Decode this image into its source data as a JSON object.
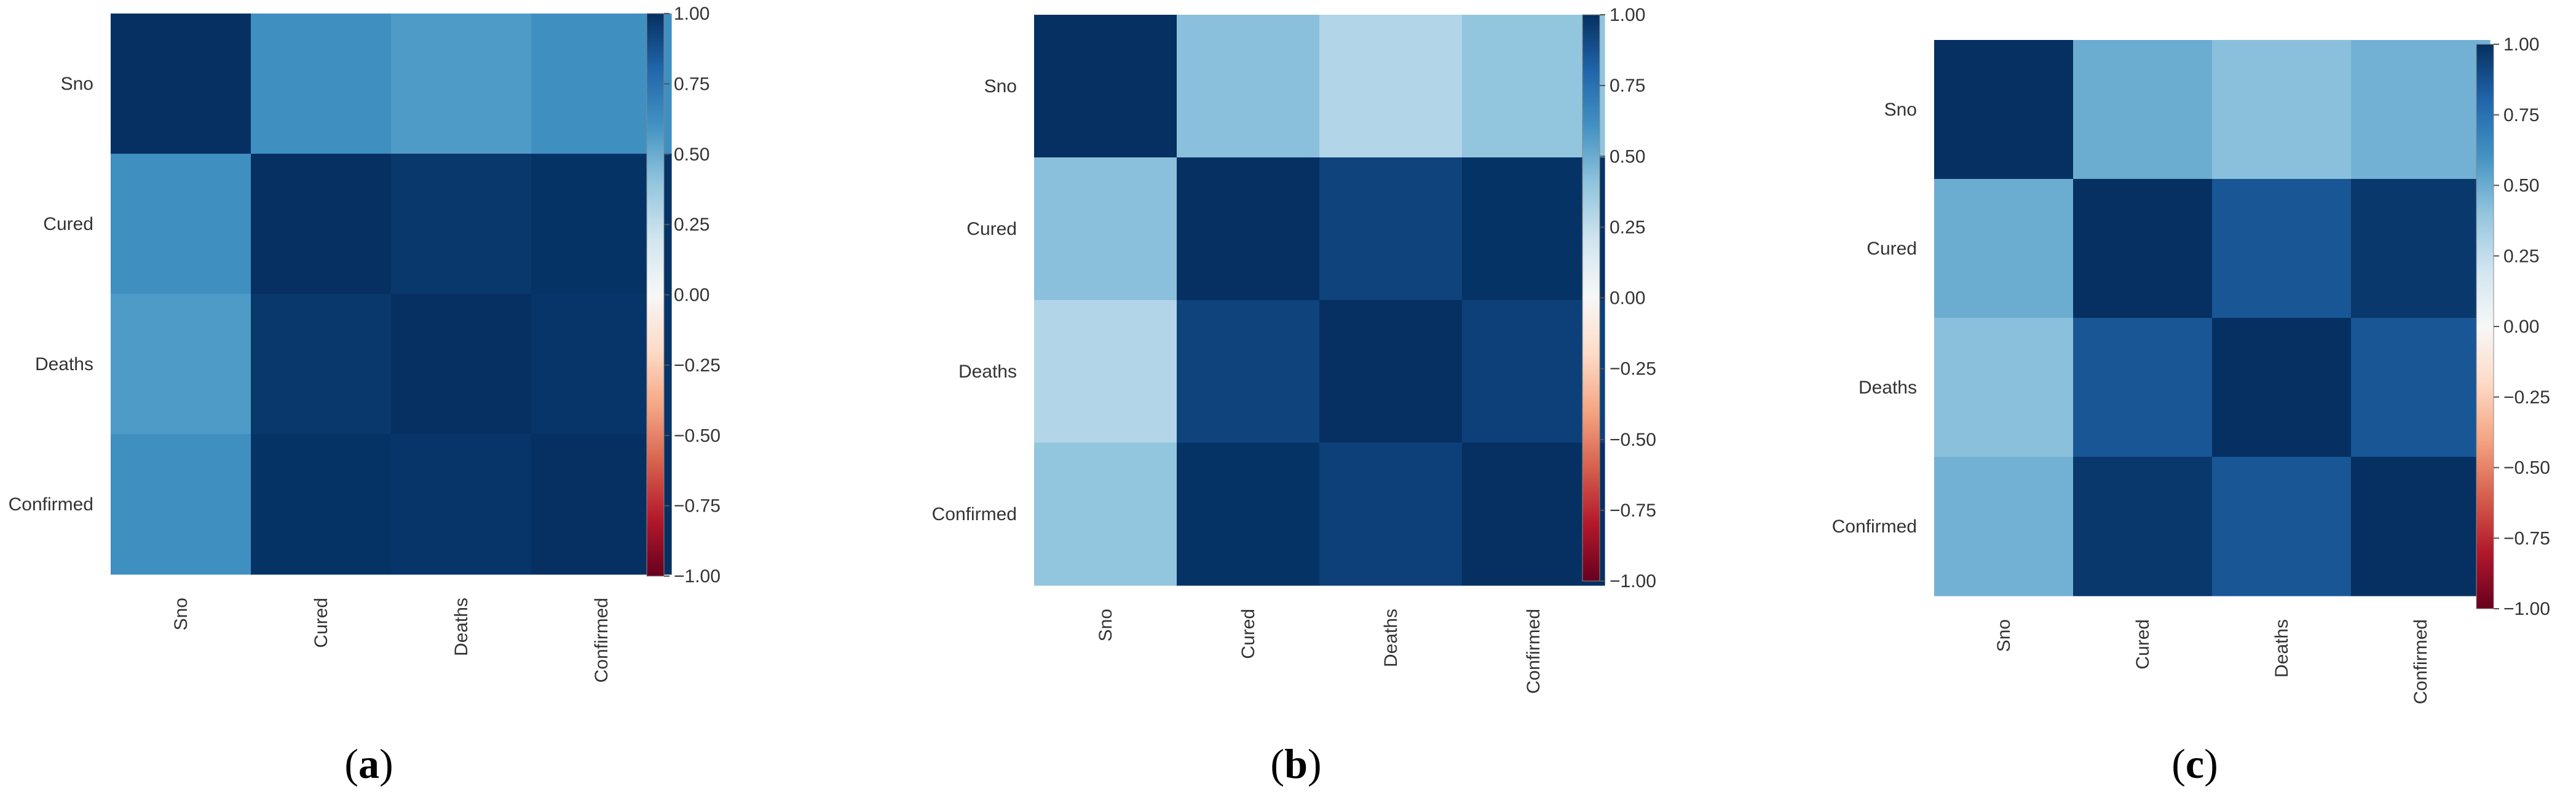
{
  "chart_data": [
    {
      "type": "heatmap",
      "panel_label": "a",
      "x_labels": [
        "Sno",
        "Cured",
        "Deaths",
        "Confirmed"
      ],
      "y_labels": [
        "Sno",
        "Cured",
        "Deaths",
        "Confirmed"
      ],
      "matrix": [
        [
          1.0,
          0.62,
          0.57,
          0.62
        ],
        [
          0.62,
          1.0,
          0.97,
          0.99
        ],
        [
          0.57,
          0.97,
          1.0,
          0.98
        ],
        [
          0.62,
          0.99,
          0.98,
          1.0
        ]
      ],
      "colorbar": {
        "range": [
          -1,
          1
        ],
        "ticks": [
          "1.00",
          "0.75",
          "0.50",
          "0.25",
          "0.00",
          "−0.25",
          "−0.50",
          "−0.75",
          "−1.00"
        ]
      },
      "colormap": "RdBu"
    },
    {
      "type": "heatmap",
      "panel_label": "b",
      "x_labels": [
        "Sno",
        "Cured",
        "Deaths",
        "Confirmed"
      ],
      "y_labels": [
        "Sno",
        "Cured",
        "Deaths",
        "Confirmed"
      ],
      "matrix": [
        [
          1.0,
          0.42,
          0.3,
          0.4
        ],
        [
          0.42,
          1.0,
          0.93,
          0.99
        ],
        [
          0.3,
          0.93,
          1.0,
          0.94
        ],
        [
          0.4,
          0.99,
          0.94,
          1.0
        ]
      ],
      "colorbar": {
        "range": [
          -1,
          1
        ],
        "ticks": [
          "1.00",
          "0.75",
          "0.50",
          "0.25",
          "0.00",
          "−0.25",
          "−0.50",
          "−0.75",
          "−1.00"
        ]
      },
      "colormap": "RdBu"
    },
    {
      "type": "heatmap",
      "panel_label": "c",
      "x_labels": [
        "Sno",
        "Cured",
        "Deaths",
        "Confirmed"
      ],
      "y_labels": [
        "Sno",
        "Cured",
        "Deaths",
        "Confirmed"
      ],
      "matrix": [
        [
          1.0,
          0.5,
          0.42,
          0.48
        ],
        [
          0.5,
          1.0,
          0.86,
          0.97
        ],
        [
          0.42,
          0.86,
          1.0,
          0.86
        ],
        [
          0.48,
          0.97,
          0.86,
          1.0
        ]
      ],
      "colorbar": {
        "range": [
          -1,
          1
        ],
        "ticks": [
          "1.00",
          "0.75",
          "0.50",
          "0.25",
          "0.00",
          "−0.25",
          "−0.50",
          "−0.75",
          "−1.00"
        ]
      },
      "colormap": "RdBu"
    }
  ]
}
